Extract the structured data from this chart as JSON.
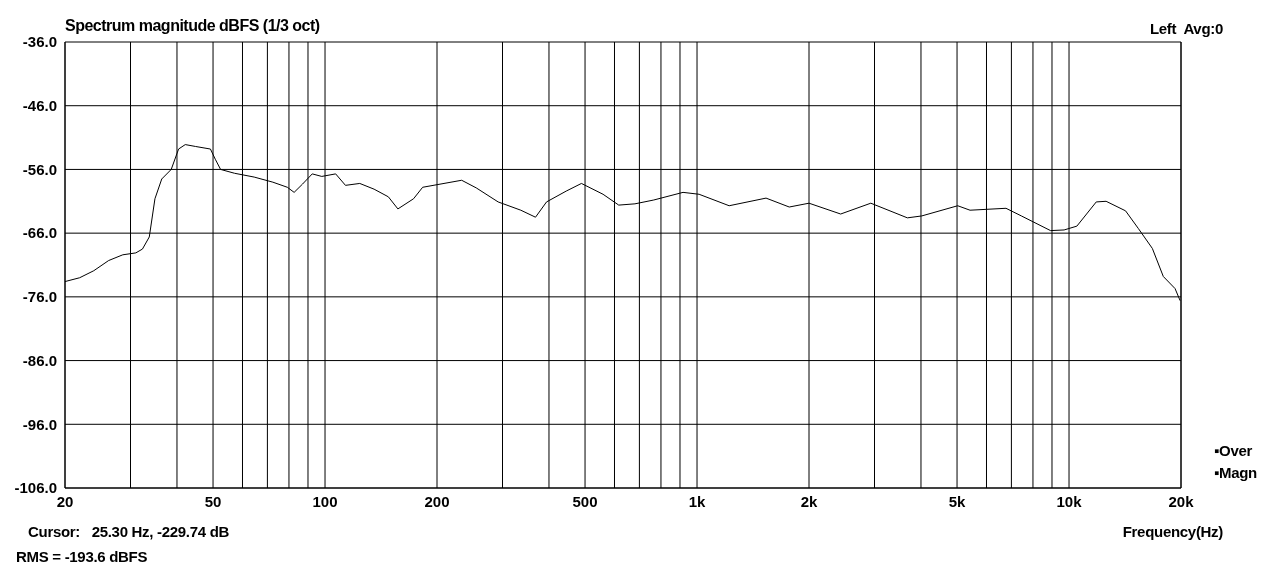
{
  "chart_data": {
    "type": "line",
    "title": "Spectrum magnitude dBFS (1/3 oct)",
    "xlabel": "Frequency(Hz)",
    "log": "x",
    "grid": true,
    "legend": false,
    "marker": "none",
    "line_style": "solid",
    "annotations": [
      "Left  Avg:0",
      "Cursor:   25.30 Hz, -229.74 dB",
      "RMS = -193.6 dBFS",
      "▪Over",
      "▪Magn"
    ],
    "xlim": [
      20,
      20000
    ],
    "xticks": [
      20,
      {
        "value": 30,
        "label": null
      },
      {
        "value": 40,
        "label": null
      },
      50,
      {
        "value": 60,
        "label": null
      },
      {
        "value": 70,
        "label": null
      },
      {
        "value": 80,
        "label": null
      },
      {
        "value": 90,
        "label": null
      },
      100,
      200,
      {
        "value": 300,
        "label": null
      },
      {
        "value": 400,
        "label": null
      },
      500,
      {
        "value": 600,
        "label": null
      },
      {
        "value": 700,
        "label": null
      },
      {
        "value": 800,
        "label": null
      },
      {
        "value": 900,
        "label": null
      },
      {
        "value": 1000,
        "label": "1k"
      },
      {
        "value": 2000,
        "label": "2k"
      },
      {
        "value": 3000,
        "label": null
      },
      {
        "value": 4000,
        "label": null
      },
      {
        "value": 5000,
        "label": "5k"
      },
      {
        "value": 6000,
        "label": null
      },
      {
        "value": 7000,
        "label": null
      },
      {
        "value": 8000,
        "label": null
      },
      {
        "value": 9000,
        "label": null
      },
      {
        "value": 10000,
        "label": "10k"
      },
      {
        "value": 20000,
        "label": "20k"
      }
    ],
    "ylim": [
      -106,
      -36
    ],
    "yticks": [
      {
        "value": -106,
        "label": "-106.0"
      },
      {
        "value": -96,
        "label": "-96.0"
      },
      {
        "value": -86,
        "label": "-86.0"
      },
      {
        "value": -76,
        "label": "-76.0"
      },
      {
        "value": -66,
        "label": "-66.0"
      },
      {
        "value": -56,
        "label": "-56.0"
      },
      {
        "value": -46,
        "label": "-46.0"
      },
      {
        "value": -36,
        "label": "-36.0"
      }
    ],
    "series": [
      {
        "color": "#000000",
        "x": [
          20,
          21.9,
          23.9,
          26.2,
          28.6,
          31,
          32.3,
          33.7,
          34.9,
          36.4,
          38.6,
          40.4,
          42.1,
          44.9,
          49.2,
          50.7,
          52.4,
          57.1,
          64.5,
          72.4,
          79.2,
          82.6,
          87,
          92.4,
          98,
          106.8,
          113.5,
          124,
          135.5,
          148,
          157,
          173,
          183,
          233,
          255,
          292,
          336,
          368,
          394,
          445,
          489,
          559,
          616,
          681,
          765,
          917,
          1013,
          1220,
          1533,
          1770,
          2000,
          2433,
          2932,
          3677,
          4018,
          5021,
          5419,
          6770,
          7447,
          8919,
          9700,
          10498,
          11837,
          12580,
          14190,
          15370,
          16750,
          17925,
          19278,
          19893
        ],
        "values": [
          -73.6,
          -73,
          -71.9,
          -70.3,
          -69.4,
          -69.1,
          -68.5,
          -66.6,
          -60.6,
          -57.5,
          -56,
          -52.8,
          -52.1,
          -52.4,
          -52.8,
          -54.4,
          -56,
          -56.6,
          -57.2,
          -58,
          -58.8,
          -59.6,
          -58.3,
          -56.7,
          -57.1,
          -56.7,
          -58.5,
          -58.2,
          -59.1,
          -60.3,
          -62.2,
          -60.6,
          -58.8,
          -57.7,
          -58.9,
          -61.1,
          -62.4,
          -63.5,
          -61.1,
          -59.4,
          -58.2,
          -59.9,
          -61.6,
          -61.4,
          -60.8,
          -59.6,
          -59.9,
          -61.7,
          -60.5,
          -61.9,
          -61.3,
          -63,
          -61.3,
          -63.6,
          -63.3,
          -61.7,
          -62.4,
          -62.1,
          -63.3,
          -65.6,
          -65.5,
          -64.9,
          -61.1,
          -61,
          -62.5,
          -65.3,
          -68.4,
          -72.8,
          -74.7,
          -76.6
        ]
      }
    ]
  }
}
